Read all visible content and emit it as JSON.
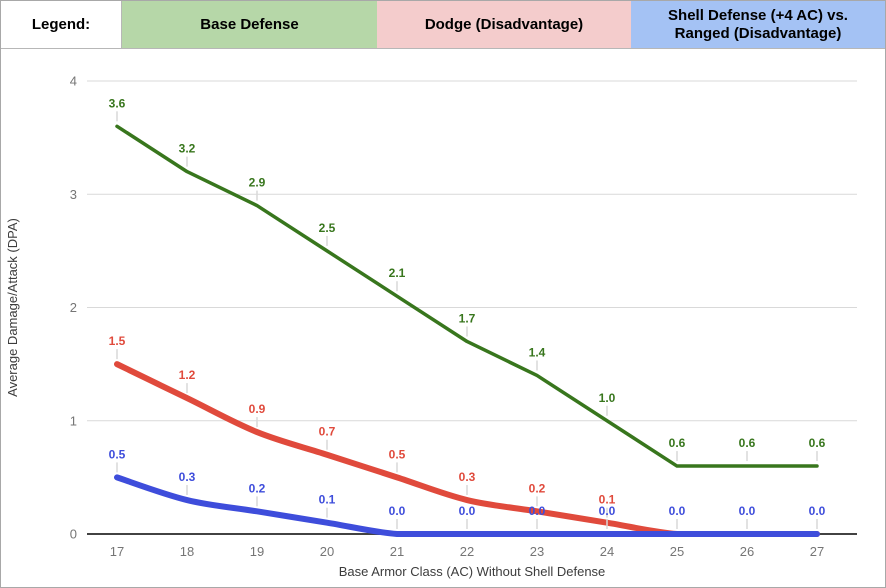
{
  "legend": {
    "title": "Legend:",
    "items": [
      {
        "key": "base-defense",
        "label": "Base Defense",
        "bg": "#b6d7a8"
      },
      {
        "key": "dodge-disadvantage",
        "label": "Dodge (Disadvantage)",
        "bg": "#f4cccc"
      },
      {
        "key": "shell-defense",
        "label": "Shell Defense (+4 AC) vs. Ranged (Disadvantage)",
        "line1": "Shell Defense (+4 AC) vs.",
        "line2": "Ranged (Disadvantage)",
        "bg": "#a4c2f4"
      }
    ]
  },
  "chart_data": {
    "type": "line",
    "title": "",
    "xlabel": "Base Armor Class (AC) Without Shell Defense",
    "ylabel": "Average Damage/Attack (DPA)",
    "x": [
      17,
      18,
      19,
      20,
      21,
      22,
      23,
      24,
      25,
      26,
      27
    ],
    "xlim": [
      17,
      27
    ],
    "ylim": [
      0,
      4
    ],
    "yticks": [
      0,
      1,
      2,
      3,
      4
    ],
    "grid": true,
    "legend_position": "top-table",
    "grid_color": "#d9d9d9",
    "axis_color": "#424242",
    "tick_label_color": "#757575",
    "title_color": "#3c3c3c",
    "leader_color": "#d9d9d9",
    "series": [
      {
        "key": "base-defense",
        "name": "Base Defense",
        "color": "#38761d",
        "width": 3.5,
        "smooth": false,
        "values": [
          3.6,
          3.2,
          2.9,
          2.5,
          2.1,
          1.7,
          1.4,
          1.0,
          0.6,
          0.6,
          0.6
        ],
        "labels": [
          "3.6",
          "3.2",
          "2.9",
          "2.5",
          "2.1",
          "1.7",
          "1.4",
          "1.0",
          "0.6",
          "0.6",
          "0.6"
        ]
      },
      {
        "key": "dodge-disadvantage",
        "name": "Dodge (Disadvantage)",
        "color": "#e04a3c",
        "width": 6,
        "smooth": true,
        "values": [
          1.5,
          1.2,
          0.9,
          0.7,
          0.5,
          0.3,
          0.2,
          0.1,
          0.0,
          0.0,
          0.0
        ],
        "labels": [
          "1.5",
          "1.2",
          "0.9",
          "0.7",
          "0.5",
          "0.3",
          "0.2",
          "0.1",
          "",
          "",
          ""
        ]
      },
      {
        "key": "shell-defense",
        "name": "Shell Defense (+4 AC) vs. Ranged (Disadvantage)",
        "color": "#3e4ddb",
        "width": 6,
        "smooth": true,
        "values": [
          0.5,
          0.3,
          0.2,
          0.1,
          0.0,
          0.0,
          0.0,
          0.0,
          0.0,
          0.0,
          0.0
        ],
        "labels": [
          "0.5",
          "0.3",
          "0.2",
          "0.1",
          "0.0",
          "0.0",
          "0.0",
          "0.0",
          "0.0",
          "0.0",
          "0.0"
        ]
      }
    ]
  }
}
